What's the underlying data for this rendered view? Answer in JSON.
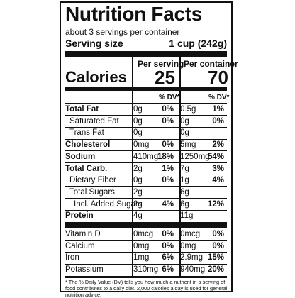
{
  "label": {
    "title": "Nutrition Facts",
    "servings_per_container": "about 3 servings per container",
    "serving_size_label": "Serving size",
    "serving_size_value": "1 cup (242g)",
    "col1_header": "Per serving",
    "col2_header": "Per container",
    "calories_label": "Calories",
    "calories_per_serving": "25",
    "calories_per_container": "70",
    "dv_header": "% DV*",
    "rows": [
      {
        "name": "Total Fat",
        "bold": true,
        "indent": 0,
        "amt1": "0g",
        "pct1": "0%",
        "amt2": "0.5g",
        "pct2": "1%"
      },
      {
        "name": "Saturated Fat",
        "bold": false,
        "indent": 1,
        "amt1": "0g",
        "pct1": "0%",
        "amt2": "0g",
        "pct2": "0%"
      },
      {
        "name": "Trans Fat",
        "bold": false,
        "indent": 1,
        "amt1": "0g",
        "pct1": "",
        "amt2": "0g",
        "pct2": ""
      },
      {
        "name": "Cholesterol",
        "bold": true,
        "indent": 0,
        "amt1": "0mg",
        "pct1": "0%",
        "amt2": "5mg",
        "pct2": "2%"
      },
      {
        "name": "Sodium",
        "bold": true,
        "indent": 0,
        "amt1": "410mg",
        "pct1": "18%",
        "amt2": "1250mg",
        "pct2": "54%"
      },
      {
        "name": "Total Carb.",
        "bold": true,
        "indent": 0,
        "amt1": "2g",
        "pct1": "1%",
        "amt2": "7g",
        "pct2": "3%"
      },
      {
        "name": "Dietary Fiber",
        "bold": false,
        "indent": 1,
        "amt1": "0g",
        "pct1": "0%",
        "amt2": "1g",
        "pct2": "4%"
      },
      {
        "name": "Total Sugars",
        "bold": false,
        "indent": 1,
        "amt1": "2g",
        "pct1": "",
        "amt2": "6g",
        "pct2": ""
      },
      {
        "name": "Incl. Added Sugars",
        "bold": false,
        "indent": 2,
        "amt1": "2g",
        "pct1": "4%",
        "amt2": "6g",
        "pct2": "12%"
      },
      {
        "name": "Protein",
        "bold": true,
        "indent": 0,
        "amt1": "4g",
        "pct1": "",
        "amt2": "11g",
        "pct2": ""
      }
    ],
    "vitamins": [
      {
        "name": "Vitamin D",
        "amt1": "0mcg",
        "pct1": "0%",
        "amt2": "0mcg",
        "pct2": "0%"
      },
      {
        "name": "Calcium",
        "amt1": "0mg",
        "pct1": "0%",
        "amt2": "0mg",
        "pct2": "0%"
      },
      {
        "name": "Iron",
        "amt1": "1mg",
        "pct1": "6%",
        "amt2": "2.9mg",
        "pct2": "15%"
      },
      {
        "name": "Potassium",
        "amt1": "310mg",
        "pct1": "6%",
        "amt2": "940mg",
        "pct2": "20%"
      }
    ],
    "footnote": "* The % Daily Value (DV) tells you how much a nutrient in a serving of food contributes to a daily diet. 2,000 calories a day is used for general nutrition advice."
  }
}
